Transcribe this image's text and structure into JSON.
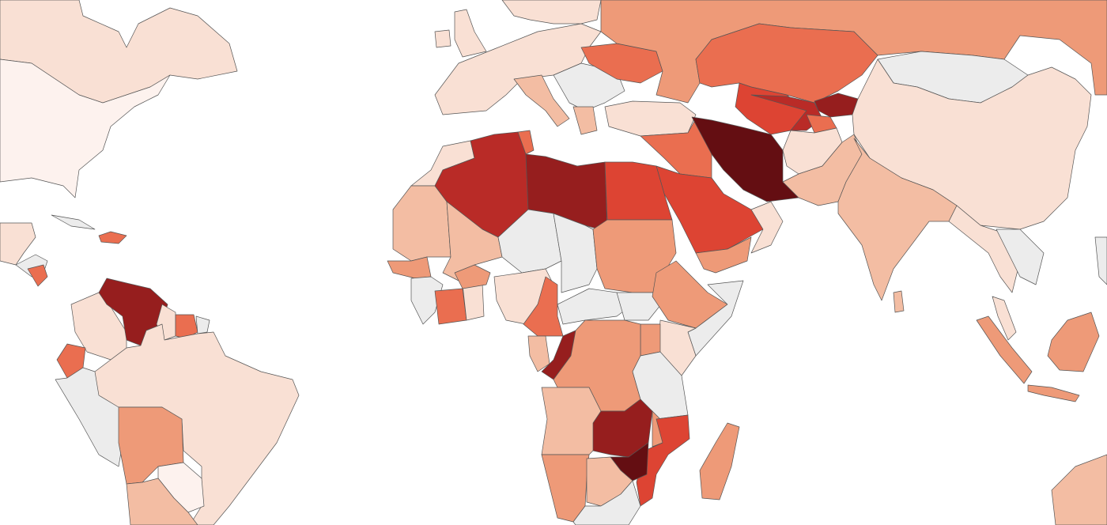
{
  "map": {
    "type": "choropleth",
    "ocean_color": "#ffffff",
    "no_data_color": "#ececec",
    "border_color": "#555555",
    "color_scale": [
      "#fdf2ee",
      "#f9e0d4",
      "#f3bda3",
      "#ee9a78",
      "#ea6e50",
      "#dd4433",
      "#b92b27",
      "#961e1e",
      "#640e12"
    ]
  }
}
